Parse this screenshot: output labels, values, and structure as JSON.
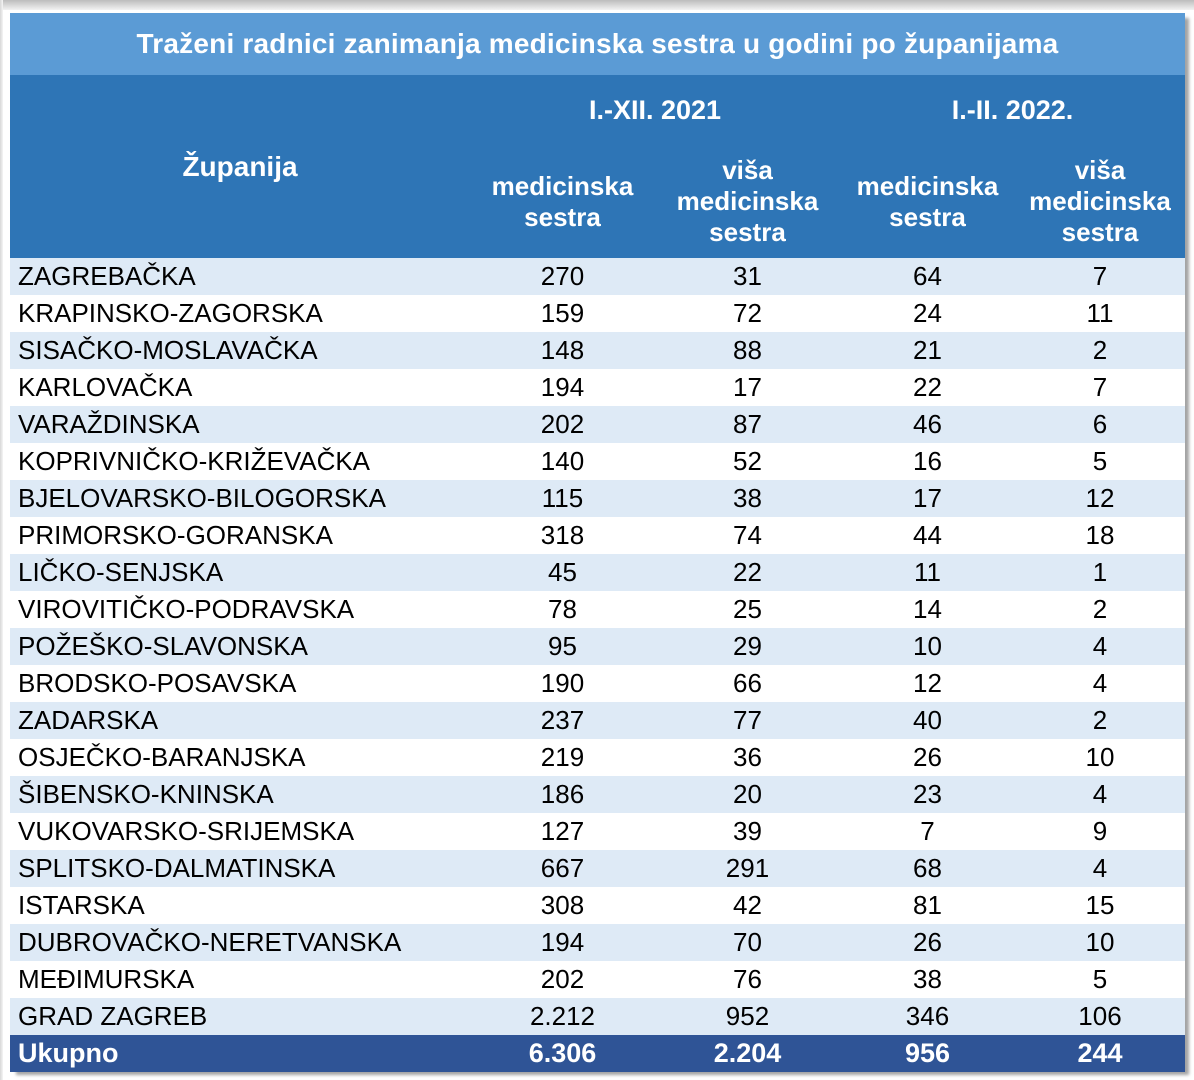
{
  "title": "Traženi radnici zanimanja medicinska sestra u godini po županijama",
  "colors": {
    "title_band": "#5B9BD5",
    "header_band": "#2E75B6",
    "row_alternate": "#DEEAF6",
    "total_band": "#2F5496"
  },
  "table": {
    "corner_header": "Županija",
    "groups": [
      {
        "label": "I.-XII. 2021"
      },
      {
        "label": "I.-II. 2022."
      }
    ],
    "sub_headers": [
      "medicinska\nsestra",
      "viša\nmedicinska\nsestra",
      "medicinska\nsestra",
      "viša\nmedicinska\nsestra"
    ],
    "rows": [
      {
        "name": "ZAGREBAČKA",
        "values": [
          "270",
          "31",
          "64",
          "7"
        ]
      },
      {
        "name": "KRAPINSKO-ZAGORSKA",
        "values": [
          "159",
          "72",
          "24",
          "11"
        ]
      },
      {
        "name": "SISAČKO-MOSLAVAČKA",
        "values": [
          "148",
          "88",
          "21",
          "2"
        ]
      },
      {
        "name": "KARLOVAČKA",
        "values": [
          "194",
          "17",
          "22",
          "7"
        ]
      },
      {
        "name": "VARAŽDINSKA",
        "values": [
          "202",
          "87",
          "46",
          "6"
        ]
      },
      {
        "name": "KOPRIVNIČKO-KRIŽEVAČKA",
        "values": [
          "140",
          "52",
          "16",
          "5"
        ]
      },
      {
        "name": "BJELOVARSKO-BILOGORSKA",
        "values": [
          "115",
          "38",
          "17",
          "12"
        ]
      },
      {
        "name": "PRIMORSKO-GORANSKA",
        "values": [
          "318",
          "74",
          "44",
          "18"
        ]
      },
      {
        "name": "LIČKO-SENJSKA",
        "values": [
          "45",
          "22",
          "11",
          "1"
        ]
      },
      {
        "name": "VIROVITIČKO-PODRAVSKA",
        "values": [
          "78",
          "25",
          "14",
          "2"
        ]
      },
      {
        "name": "POŽEŠKO-SLAVONSKA",
        "values": [
          "95",
          "29",
          "10",
          "4"
        ]
      },
      {
        "name": "BRODSKO-POSAVSKA",
        "values": [
          "190",
          "66",
          "12",
          "4"
        ]
      },
      {
        "name": "ZADARSKA",
        "values": [
          "237",
          "77",
          "40",
          "2"
        ]
      },
      {
        "name": "OSJEČKO-BARANJSKA",
        "values": [
          "219",
          "36",
          "26",
          "10"
        ]
      },
      {
        "name": "ŠIBENSKO-KNINSKA",
        "values": [
          "186",
          "20",
          "23",
          "4"
        ]
      },
      {
        "name": "VUKOVARSKO-SRIJEMSKA",
        "values": [
          "127",
          "39",
          "7",
          "9"
        ]
      },
      {
        "name": "SPLITSKO-DALMATINSKA",
        "values": [
          "667",
          "291",
          "68",
          "4"
        ]
      },
      {
        "name": "ISTARSKA",
        "values": [
          "308",
          "42",
          "81",
          "15"
        ]
      },
      {
        "name": "DUBROVAČKO-NERETVANSKA",
        "values": [
          "194",
          "70",
          "26",
          "10"
        ]
      },
      {
        "name": "MEĐIMURSKA",
        "values": [
          "202",
          "76",
          "38",
          "5"
        ]
      },
      {
        "name": "GRAD ZAGREB",
        "values": [
          "2.212",
          "952",
          "346",
          "106"
        ]
      }
    ],
    "total": {
      "label": "Ukupno",
      "values": [
        "6.306",
        "2.204",
        "956",
        "244"
      ]
    }
  }
}
